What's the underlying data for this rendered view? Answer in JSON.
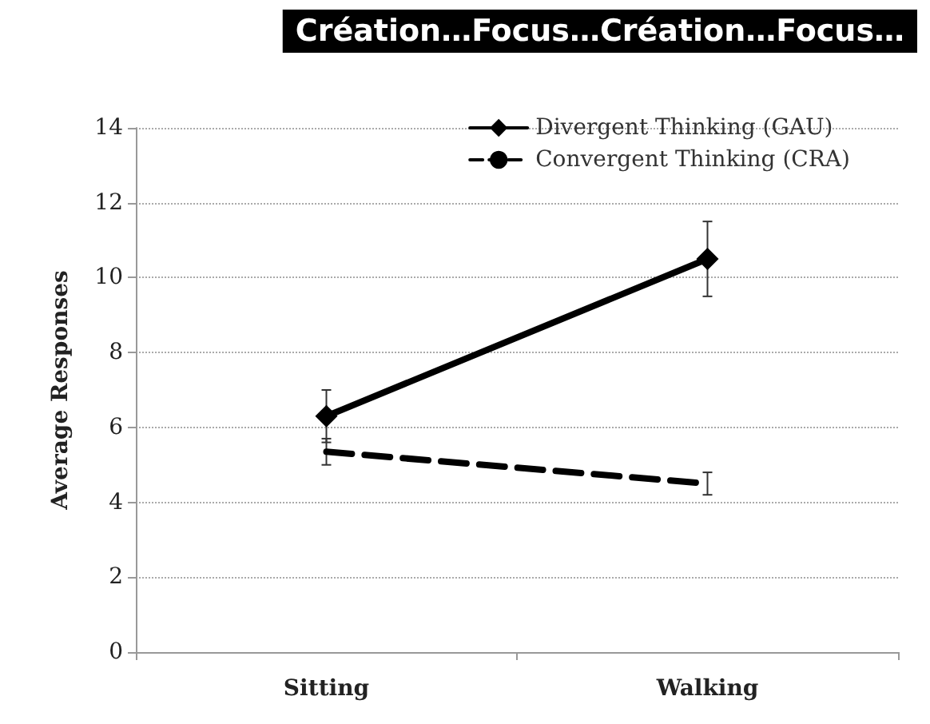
{
  "chart_data": {
    "type": "line",
    "title": "Création…Focus…Création…Focus…",
    "ylabel": "Average Responses",
    "categories": [
      "Sitting",
      "Walking"
    ],
    "series": [
      {
        "name": "Divergent Thinking (GAU)",
        "color": "#000000",
        "values": [
          6.3,
          10.5
        ],
        "errors": [
          0.7,
          1.0
        ],
        "marker": "diamond",
        "line_style": "solid"
      },
      {
        "name": "Convergent Thinking (CRA)",
        "color": "#000000",
        "values": [
          5.35,
          4.5
        ],
        "errors": [
          0.35,
          0.3
        ],
        "marker": "none",
        "line_style": "dashed"
      }
    ],
    "ylim": [
      0,
      14
    ],
    "yticks": [
      0,
      2,
      4,
      6,
      8,
      10,
      12,
      14
    ],
    "grid": "y",
    "legend": "top right"
  }
}
